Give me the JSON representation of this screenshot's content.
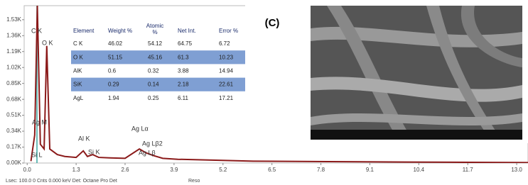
{
  "chart_data": {
    "type": "line",
    "x": [
      0.1,
      0.2,
      0.27,
      0.35,
      0.45,
      0.52,
      0.6,
      0.8,
      1.0,
      1.3,
      1.49,
      1.6,
      1.74,
      1.9,
      2.2,
      2.6,
      2.98,
      3.15,
      3.35,
      3.6,
      4.0,
      5.0,
      6.0,
      8.0,
      10.0,
      13.3
    ],
    "series": [
      {
        "color": "#8b1a1a",
        "values": [
          20,
          300,
          1680,
          200,
          150,
          1250,
          150,
          90,
          70,
          60,
          130,
          70,
          90,
          60,
          55,
          50,
          150,
          110,
          80,
          50,
          40,
          30,
          20,
          15,
          10,
          5
        ]
      }
    ],
    "xlim": [
      -0.08,
      13.3
    ],
    "ylim": [
      0,
      1680
    ],
    "xticks": [
      {
        "value": 0,
        "label": "0.0"
      },
      1.3,
      2.6,
      3.9,
      5.2,
      6.5,
      7.8,
      9.1,
      10.4,
      11.7,
      {
        "value": 13,
        "label": "13.0"
      }
    ],
    "yticks": [
      {
        "value": 0,
        "label": "0.00K"
      },
      {
        "value": 170,
        "label": "0.17K"
      },
      {
        "value": 340,
        "label": "0.34K"
      },
      {
        "value": 510,
        "label": "0.51K"
      },
      {
        "value": 680,
        "label": "0.68K"
      },
      {
        "value": 850,
        "label": "0.85K"
      },
      {
        "value": 1020,
        "label": "1.02K"
      },
      {
        "value": 1190,
        "label": "1.19K"
      },
      {
        "value": 1360,
        "label": "1.36K"
      },
      {
        "value": 1530,
        "label": "1.53K"
      }
    ],
    "annotations": [
      "C K",
      "O K",
      "Ag M",
      "Si L",
      "Al K",
      "Si K",
      "Ag Lα",
      "Ag Lβ2",
      "Ag Lβ"
    ]
  },
  "table": {
    "header": [
      "Element",
      "Weight %",
      "Atomic %",
      "Net Int.",
      "Error %"
    ],
    "rows": [
      [
        "C K",
        "46.02",
        "54.12",
        "64.75",
        "6.72"
      ],
      [
        "O K",
        "51.15",
        "45.16",
        "61.3",
        "10.23"
      ],
      [
        "AlK",
        "0.6",
        "0.32",
        "3.88",
        "14.94"
      ],
      [
        "SiK",
        "0.29",
        "0.14",
        "2.18",
        "22.61"
      ],
      [
        "AgL",
        "1.94",
        "0.25",
        "6.11",
        "17.21"
      ]
    ]
  },
  "panel_label": "(C)",
  "footer": [
    "Lsec: 100.0 0 Cnts  0.000 keV Det: Octane Pro Det",
    "Reso"
  ]
}
